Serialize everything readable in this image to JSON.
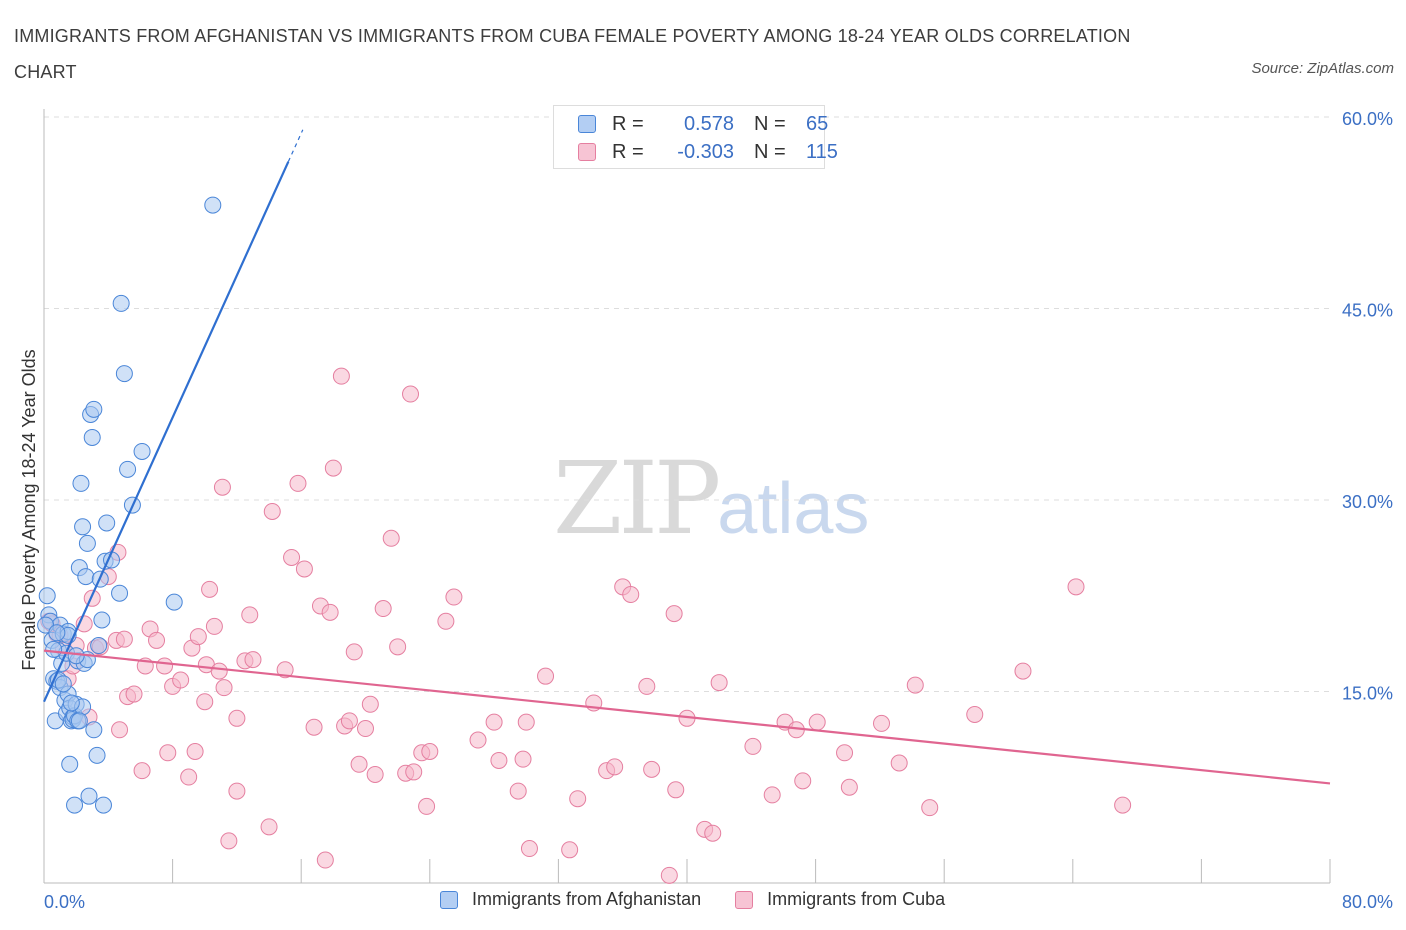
{
  "title": "IMMIGRANTS FROM AFGHANISTAN VS IMMIGRANTS FROM CUBA FEMALE POVERTY AMONG 18-24 YEAR OLDS CORRELATION CHART",
  "source": "Source: ZipAtlas.com",
  "watermark": {
    "zip": "ZIP",
    "atlas": "atlas"
  },
  "legend": {
    "r_label": "R =",
    "n_label": "N =",
    "afghanistan": {
      "r": "0.578",
      "n": "65"
    },
    "cuba": {
      "r": "-0.303",
      "n": "115"
    }
  },
  "bottom_legend": {
    "afghanistan": "Immigrants from Afghanistan",
    "cuba": "Immigrants from Cuba"
  },
  "colors": {
    "afghanistan_fill": "#a9c8f0",
    "afghanistan_stroke": "#4a86d8",
    "afghanistan_line": "#2f6fd0",
    "cuba_fill": "#f5b8cb",
    "cuba_stroke": "#e57fa0",
    "cuba_line": "#e06590",
    "tick_text": "#3b6fc4"
  },
  "chart_data": {
    "type": "scatter",
    "xlabel": "",
    "ylabel": "Female Poverty Among 18-24 Year Olds",
    "xlim": [
      0,
      80
    ],
    "ylim": [
      0,
      60
    ],
    "x_tick_labels": [
      "0.0%",
      "80.0%"
    ],
    "y_ticks": [
      15,
      30,
      45,
      60
    ],
    "y_tick_labels": [
      "15.0%",
      "30.0%",
      "45.0%",
      "60.0%"
    ],
    "grid": true,
    "series": [
      {
        "name": "Immigrants from Afghanistan",
        "trend": {
          "x0": 0,
          "y0": 14.2,
          "x1": 15.2,
          "y1": 56.5,
          "dash_to_x": 16.1,
          "dash_to_y": 59.0
        },
        "points": [
          [
            0.2,
            22.5
          ],
          [
            0.3,
            21.0
          ],
          [
            0.4,
            20.5
          ],
          [
            0.5,
            19.0
          ],
          [
            0.6,
            16.0
          ],
          [
            0.7,
            12.7
          ],
          [
            0.8,
            15.8
          ],
          [
            0.9,
            18.2
          ],
          [
            1.0,
            20.2
          ],
          [
            1.0,
            15.3
          ],
          [
            1.1,
            17.2
          ],
          [
            1.2,
            19.5
          ],
          [
            1.3,
            14.3
          ],
          [
            1.4,
            13.3
          ],
          [
            1.4,
            18.0
          ],
          [
            1.5,
            19.7
          ],
          [
            1.5,
            14.8
          ],
          [
            1.6,
            9.3
          ],
          [
            1.6,
            13.7
          ],
          [
            1.7,
            12.7
          ],
          [
            1.8,
            13.0
          ],
          [
            1.8,
            12.8
          ],
          [
            1.9,
            6.1
          ],
          [
            1.9,
            13.1
          ],
          [
            2.0,
            14.0
          ],
          [
            2.1,
            12.7
          ],
          [
            2.1,
            17.4
          ],
          [
            2.2,
            24.7
          ],
          [
            2.3,
            31.3
          ],
          [
            2.4,
            27.9
          ],
          [
            2.4,
            13.8
          ],
          [
            2.5,
            17.2
          ],
          [
            2.6,
            24.0
          ],
          [
            2.7,
            26.6
          ],
          [
            2.7,
            17.5
          ],
          [
            2.8,
            6.8
          ],
          [
            2.9,
            36.7
          ],
          [
            3.0,
            34.9
          ],
          [
            3.1,
            37.1
          ],
          [
            3.1,
            12.0
          ],
          [
            3.3,
            10.0
          ],
          [
            3.4,
            18.6
          ],
          [
            3.5,
            23.8
          ],
          [
            3.6,
            20.6
          ],
          [
            3.7,
            6.1
          ],
          [
            3.8,
            25.2
          ],
          [
            3.9,
            28.2
          ],
          [
            4.2,
            25.3
          ],
          [
            4.7,
            22.7
          ],
          [
            4.8,
            45.4
          ],
          [
            5.0,
            39.9
          ],
          [
            5.2,
            32.4
          ],
          [
            5.5,
            29.6
          ],
          [
            6.1,
            33.8
          ],
          [
            8.1,
            22.0
          ],
          [
            10.5,
            53.1
          ],
          [
            0.1,
            20.2
          ],
          [
            0.6,
            18.3
          ],
          [
            0.9,
            15.9
          ],
          [
            1.2,
            15.6
          ],
          [
            1.5,
            19.4
          ],
          [
            2.0,
            17.8
          ],
          [
            2.2,
            12.7
          ],
          [
            0.8,
            19.6
          ],
          [
            1.7,
            14.1
          ]
        ]
      },
      {
        "name": "Immigrants from Cuba",
        "trend": {
          "x0": 0,
          "y0": 18.2,
          "x1": 80,
          "y1": 7.8
        },
        "points": [
          [
            0.3,
            20.5
          ],
          [
            0.5,
            20.3
          ],
          [
            0.8,
            19.5
          ],
          [
            1.0,
            19.4
          ],
          [
            1.2,
            18.4
          ],
          [
            1.5,
            16.0
          ],
          [
            1.8,
            17.0
          ],
          [
            2.0,
            18.6
          ],
          [
            2.5,
            20.3
          ],
          [
            2.8,
            13.0
          ],
          [
            3.0,
            22.3
          ],
          [
            3.2,
            18.4
          ],
          [
            3.5,
            18.5
          ],
          [
            4.0,
            24.0
          ],
          [
            4.5,
            19.0
          ],
          [
            4.6,
            25.9
          ],
          [
            4.7,
            12.0
          ],
          [
            5.0,
            19.1
          ],
          [
            5.2,
            14.6
          ],
          [
            5.6,
            14.8
          ],
          [
            6.1,
            8.8
          ],
          [
            6.3,
            17.0
          ],
          [
            6.6,
            19.9
          ],
          [
            7.0,
            19.0
          ],
          [
            7.5,
            17.0
          ],
          [
            7.7,
            10.2
          ],
          [
            8.0,
            15.4
          ],
          [
            8.5,
            15.9
          ],
          [
            9.0,
            8.3
          ],
          [
            9.2,
            18.4
          ],
          [
            9.4,
            10.3
          ],
          [
            9.6,
            19.3
          ],
          [
            10.0,
            14.2
          ],
          [
            10.1,
            17.1
          ],
          [
            10.3,
            23.0
          ],
          [
            10.6,
            20.1
          ],
          [
            10.9,
            16.6
          ],
          [
            11.1,
            31.0
          ],
          [
            11.2,
            15.3
          ],
          [
            11.5,
            3.3
          ],
          [
            12.0,
            12.9
          ],
          [
            12.0,
            7.2
          ],
          [
            12.5,
            17.4
          ],
          [
            12.8,
            21.0
          ],
          [
            13.0,
            17.5
          ],
          [
            14.0,
            4.4
          ],
          [
            14.2,
            29.1
          ],
          [
            15.0,
            16.7
          ],
          [
            15.4,
            25.5
          ],
          [
            15.8,
            31.3
          ],
          [
            16.2,
            24.6
          ],
          [
            16.8,
            12.2
          ],
          [
            17.2,
            21.7
          ],
          [
            17.5,
            1.8
          ],
          [
            17.8,
            21.2
          ],
          [
            18.0,
            32.5
          ],
          [
            18.5,
            39.7
          ],
          [
            18.7,
            12.3
          ],
          [
            19.0,
            12.7
          ],
          [
            19.3,
            18.1
          ],
          [
            19.6,
            9.3
          ],
          [
            20.0,
            12.1
          ],
          [
            20.3,
            14.0
          ],
          [
            20.6,
            8.5
          ],
          [
            21.1,
            21.5
          ],
          [
            21.6,
            27.0
          ],
          [
            22.0,
            18.5
          ],
          [
            22.5,
            8.6
          ],
          [
            22.8,
            38.3
          ],
          [
            23.0,
            8.7
          ],
          [
            23.5,
            10.2
          ],
          [
            23.8,
            6.0
          ],
          [
            24.0,
            10.3
          ],
          [
            25.0,
            20.5
          ],
          [
            25.5,
            22.4
          ],
          [
            27.0,
            11.2
          ],
          [
            28.0,
            12.6
          ],
          [
            28.3,
            9.6
          ],
          [
            29.5,
            7.2
          ],
          [
            29.8,
            9.7
          ],
          [
            30.0,
            12.6
          ],
          [
            30.2,
            2.7
          ],
          [
            31.2,
            16.2
          ],
          [
            32.7,
            2.6
          ],
          [
            33.2,
            6.6
          ],
          [
            34.2,
            14.1
          ],
          [
            35.0,
            8.8
          ],
          [
            35.5,
            9.1
          ],
          [
            36.0,
            23.2
          ],
          [
            36.5,
            22.6
          ],
          [
            37.5,
            15.4
          ],
          [
            37.8,
            8.9
          ],
          [
            38.9,
            0.6
          ],
          [
            39.2,
            21.1
          ],
          [
            39.3,
            7.3
          ],
          [
            40.0,
            12.9
          ],
          [
            41.1,
            4.2
          ],
          [
            41.6,
            3.9
          ],
          [
            42.0,
            15.7
          ],
          [
            44.1,
            10.7
          ],
          [
            45.3,
            6.9
          ],
          [
            46.1,
            12.6
          ],
          [
            46.8,
            12.0
          ],
          [
            47.2,
            8.0
          ],
          [
            48.1,
            12.6
          ],
          [
            49.8,
            10.2
          ],
          [
            50.1,
            7.5
          ],
          [
            52.1,
            12.5
          ],
          [
            53.2,
            9.4
          ],
          [
            54.2,
            15.5
          ],
          [
            55.1,
            5.9
          ],
          [
            57.9,
            13.2
          ],
          [
            60.9,
            16.6
          ],
          [
            64.2,
            23.2
          ],
          [
            67.1,
            6.1
          ]
        ]
      }
    ]
  }
}
